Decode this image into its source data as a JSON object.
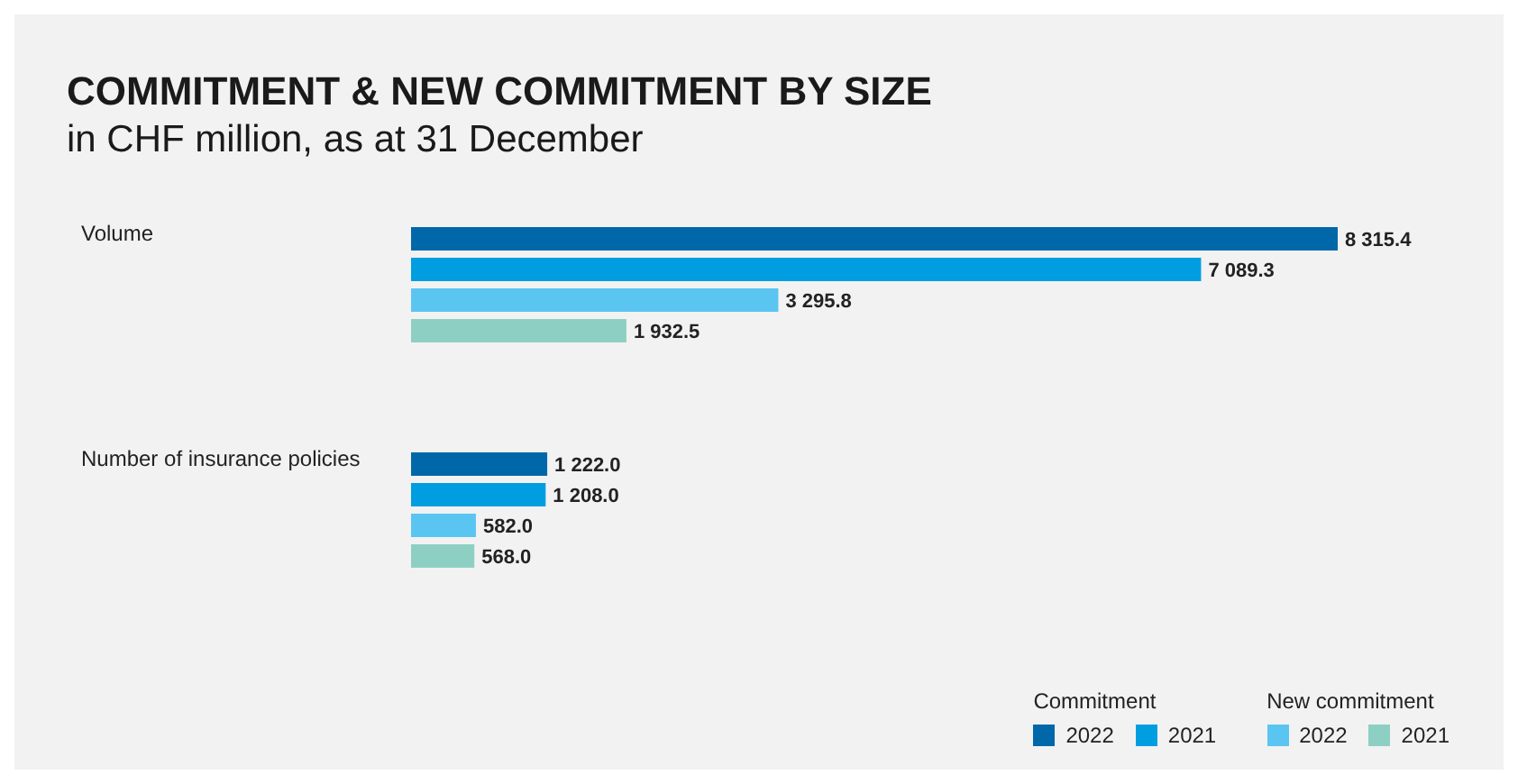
{
  "chart_data": {
    "type": "bar",
    "orientation": "horizontal",
    "title": "COMMITMENT & NEW COMMITMENT BY SIZE",
    "subtitle": "in CHF million, as at 31 December",
    "categories": [
      "Volume",
      "Number of insurance policies"
    ],
    "series": [
      {
        "name": "2022",
        "color": "#0068a8",
        "values": [
          8315.4,
          1222.0
        ],
        "value_labels": [
          "8 315.4",
          "1 222.0"
        ]
      },
      {
        "name": "2021",
        "color": "#009ee0",
        "values": [
          7089.3,
          1208.0
        ],
        "value_labels": [
          "7 089.3",
          "1 208.0"
        ]
      },
      {
        "name": "2022",
        "color": "#5bc5f2",
        "values": [
          3295.8,
          582.0
        ],
        "value_labels": [
          "3 295.8",
          "582.0"
        ]
      },
      {
        "name": "2021",
        "color": "#8dd0c3",
        "values": [
          1932.5,
          568.0
        ],
        "value_labels": [
          "1 932.5",
          "568.0"
        ]
      }
    ],
    "annotations": [
      "Commitment",
      "New commitment"
    ],
    "data_labels": true,
    "legend": "bottom right",
    "grid": false
  }
}
